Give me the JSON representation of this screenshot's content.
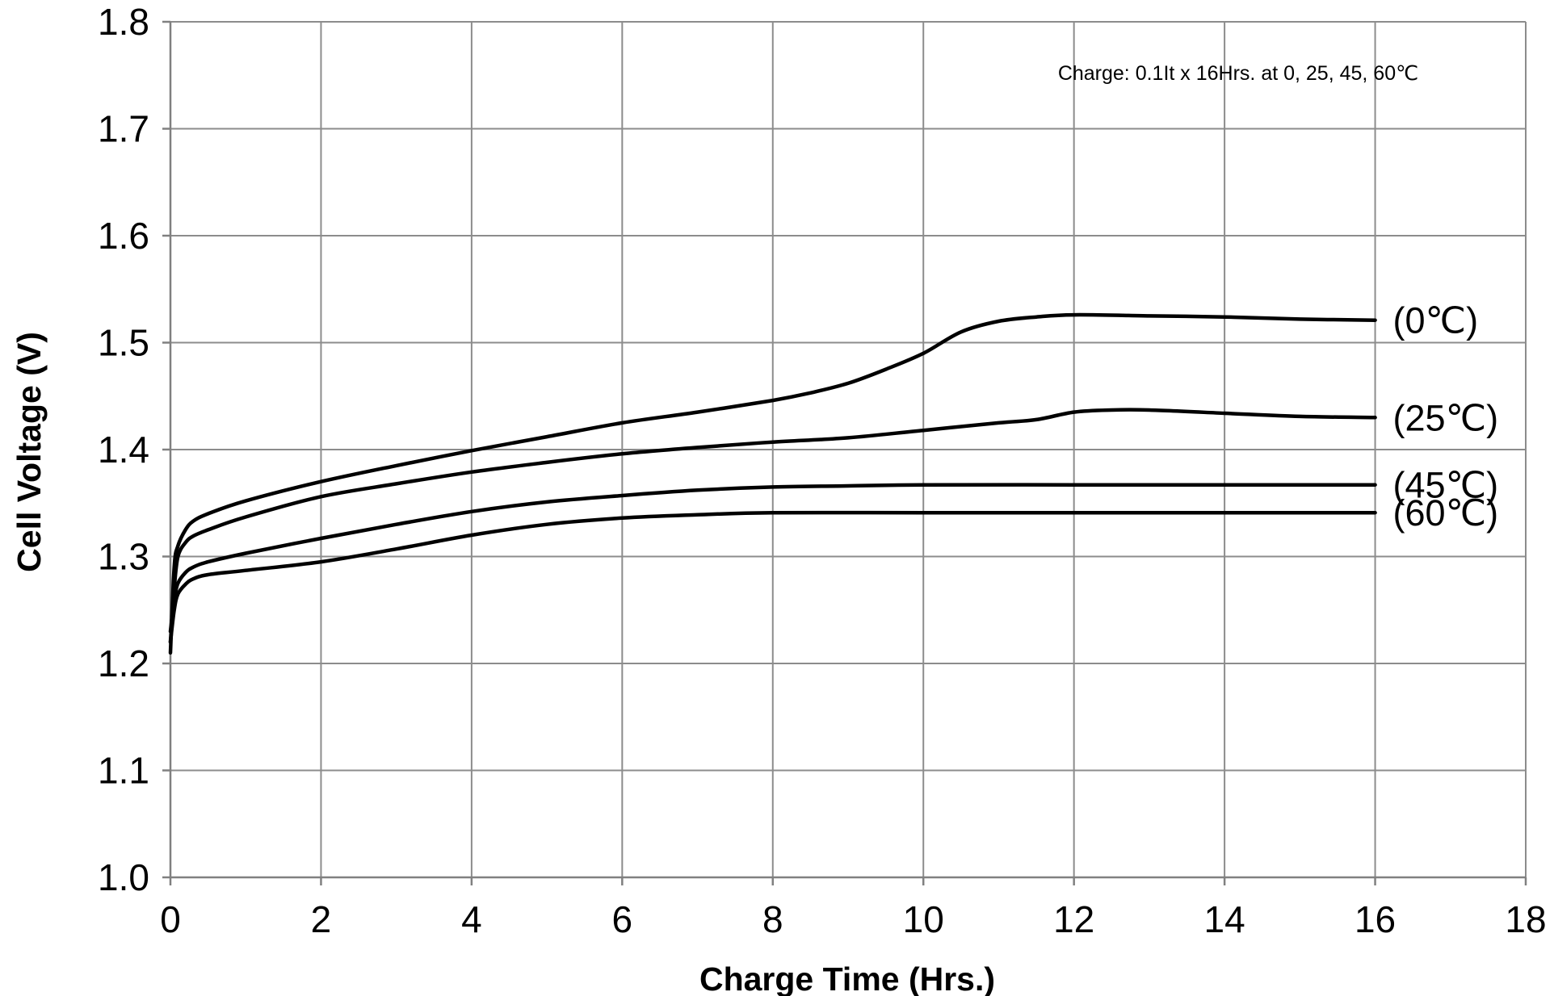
{
  "chart_data": {
    "type": "line",
    "xlabel": "Charge Time (Hrs.)",
    "ylabel": "Cell Voltage (V)",
    "xlim": [
      0,
      18
    ],
    "ylim": [
      1.0,
      1.8
    ],
    "x_ticks": [
      "0",
      "2",
      "4",
      "6",
      "8",
      "10",
      "12",
      "14",
      "16",
      "18"
    ],
    "y_ticks": [
      "1.0",
      "1.1",
      "1.2",
      "1.3",
      "1.4",
      "1.5",
      "1.6",
      "1.7",
      "1.8"
    ],
    "grid": true,
    "annotation": "Charge: 0.1It x 16Hrs. at 0, 25, 45, 60℃",
    "series": [
      {
        "name": "(0℃)",
        "x": [
          0,
          0.05,
          0.1,
          0.2,
          0.3,
          0.5,
          1,
          2,
          3,
          4,
          5,
          6,
          7,
          8,
          8.5,
          9,
          9.5,
          10,
          10.5,
          11,
          11.5,
          12,
          13,
          14,
          15,
          16
        ],
        "y": [
          1.21,
          1.29,
          1.31,
          1.325,
          1.333,
          1.34,
          1.352,
          1.37,
          1.385,
          1.399,
          1.412,
          1.425,
          1.435,
          1.446,
          1.453,
          1.462,
          1.475,
          1.49,
          1.51,
          1.52,
          1.524,
          1.526,
          1.525,
          1.524,
          1.522,
          1.521
        ]
      },
      {
        "name": "(25℃)",
        "x": [
          0,
          0.05,
          0.1,
          0.2,
          0.3,
          0.5,
          1,
          2,
          3,
          4,
          5,
          6,
          7,
          8,
          9,
          10,
          11,
          11.5,
          12,
          12.5,
          13,
          14,
          15,
          16
        ],
        "y": [
          1.22,
          1.27,
          1.3,
          1.313,
          1.319,
          1.325,
          1.337,
          1.356,
          1.368,
          1.379,
          1.388,
          1.396,
          1.402,
          1.407,
          1.411,
          1.418,
          1.425,
          1.428,
          1.435,
          1.437,
          1.437,
          1.434,
          1.431,
          1.43
        ]
      },
      {
        "name": "(45℃)",
        "x": [
          0,
          0.05,
          0.1,
          0.2,
          0.3,
          0.5,
          1,
          2,
          3,
          4,
          5,
          6,
          7,
          8,
          9,
          10,
          12,
          14,
          16
        ],
        "y": [
          1.23,
          1.26,
          1.275,
          1.285,
          1.29,
          1.295,
          1.303,
          1.317,
          1.33,
          1.342,
          1.351,
          1.357,
          1.362,
          1.365,
          1.366,
          1.367,
          1.367,
          1.367,
          1.367
        ]
      },
      {
        "name": "(60℃)",
        "x": [
          0,
          0.05,
          0.1,
          0.2,
          0.3,
          0.5,
          1,
          2,
          3,
          4,
          5,
          6,
          7,
          8,
          10,
          12,
          14,
          16
        ],
        "y": [
          1.22,
          1.25,
          1.265,
          1.274,
          1.279,
          1.283,
          1.287,
          1.295,
          1.307,
          1.32,
          1.33,
          1.336,
          1.339,
          1.341,
          1.341,
          1.341,
          1.341,
          1.341
        ]
      }
    ]
  }
}
